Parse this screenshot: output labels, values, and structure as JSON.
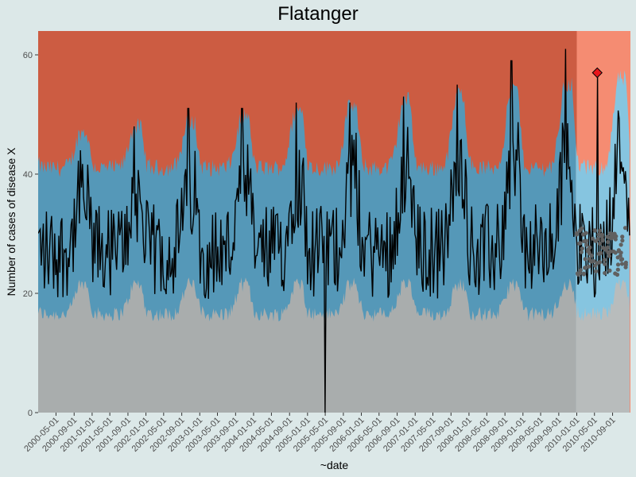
{
  "chart_data": {
    "type": "area",
    "title": "Flatanger",
    "xlabel": "~date",
    "ylabel": "Number of cases of disease X",
    "x_range": [
      "2000-01-01",
      "2010-12-31"
    ],
    "ylim": [
      0,
      64
    ],
    "y_ticks": [
      0,
      20,
      40,
      60
    ],
    "x_ticks": [
      "2000-05-01",
      "2000-09-01",
      "2001-01-01",
      "2001-05-01",
      "2001-09-01",
      "2002-01-01",
      "2002-05-01",
      "2002-09-01",
      "2003-01-01",
      "2003-05-01",
      "2003-09-01",
      "2004-01-01",
      "2004-05-01",
      "2004-09-01",
      "2005-01-01",
      "2005-05-01",
      "2005-09-01",
      "2006-01-01",
      "2006-05-01",
      "2006-09-01",
      "2007-01-01",
      "2007-05-01",
      "2007-09-01",
      "2008-01-01",
      "2008-05-01",
      "2008-09-01",
      "2009-01-01",
      "2009-05-01",
      "2009-09-01",
      "2010-01-01",
      "2010-05-01",
      "2010-09-01"
    ],
    "forecast_start": "2010-01-01",
    "seasonal_peaks": [
      {
        "date": "2000-10-15",
        "value": 46
      },
      {
        "date": "2001-10-15",
        "value": 50
      },
      {
        "date": "2002-10-15",
        "value": 53
      },
      {
        "date": "2003-10-15",
        "value": 53
      },
      {
        "date": "2004-10-15",
        "value": 54
      },
      {
        "date": "2005-10-15",
        "value": 54
      },
      {
        "date": "2006-10-15",
        "value": 55
      },
      {
        "date": "2007-10-15",
        "value": 57
      },
      {
        "date": "2008-10-15",
        "value": 61
      },
      {
        "date": "2009-10-15",
        "value": 63
      },
      {
        "date": "2010-05-20",
        "value": 57
      }
    ],
    "outbreak_point": {
      "date": "2010-05-20",
      "value": 57
    },
    "zero_dip": {
      "date": "2005-05-01",
      "value": 0
    },
    "colors": {
      "panel_bg": "#dce8e8",
      "red_zone": "#cc5c42",
      "red_zone_forecast": "#f58c72",
      "blue_band": "#5598b8",
      "blue_band_forecast": "#86c5e0",
      "grey_zone": "#a9adad",
      "grey_zone_forecast": "#b8bcbc",
      "observed_line": "#000000",
      "forecast_points": "#606060",
      "outbreak_marker": "#e8161b"
    }
  }
}
